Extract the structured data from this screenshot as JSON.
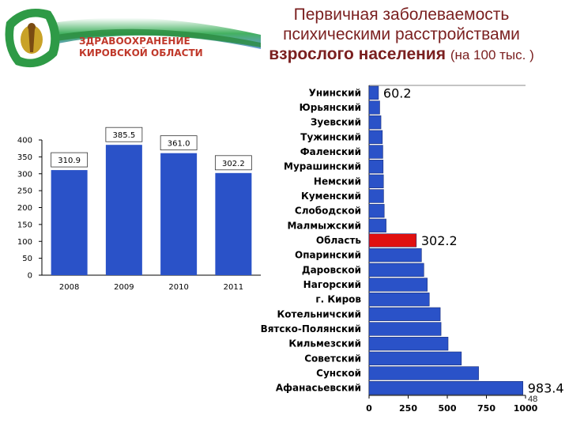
{
  "header": {
    "logo_line1": "ЗДРАВООХРАНЕНИЕ",
    "logo_line2": "КИРОВСКОЙ ОБЛАСТИ",
    "title_line1": "Первичная заболеваемость",
    "title_line2": "психическими расстройствами",
    "title_line3": "взрослого населения",
    "title_sub": "(на 100 тыс. )",
    "page_number": "48"
  },
  "colors": {
    "bar": "#2a52c8",
    "bar_highlight": "#e01010",
    "title": "#7a1f1f",
    "logo_text": "#c0392b"
  },
  "chart_data": [
    {
      "type": "bar",
      "categories": [
        "2008",
        "2009",
        "2010",
        "2011"
      ],
      "values": [
        310.9,
        385.5,
        361.0,
        302.2
      ],
      "value_labels": [
        "310.9",
        "385.5",
        "361.0",
        "302.2"
      ],
      "ylim": [
        0,
        400
      ],
      "yticks": [
        0,
        50,
        100,
        150,
        200,
        250,
        300,
        350,
        400
      ],
      "grid": false,
      "color": "#2a52c8"
    },
    {
      "type": "bar",
      "orientation": "horizontal",
      "categories": [
        "Унинский",
        "Юрьянский",
        "Зуевский",
        "Тужинский",
        "Фаленский",
        "Мурашинский",
        "Немский",
        "Куменский",
        "Слободской",
        "Малмыжский",
        "Область",
        "Опаринский",
        "Даровской",
        "Нагорский",
        "г. Киров",
        "Котельничский",
        "Вятско-Полянский",
        "Кильмезский",
        "Советский",
        "Сунской",
        "Афанасьевский"
      ],
      "values": [
        60.2,
        68,
        76,
        85,
        88,
        90,
        92,
        93,
        97,
        109,
        302.2,
        335,
        350,
        372,
        385,
        455,
        460,
        505,
        590,
        700,
        983.4
      ],
      "value_labels": {
        "0": "60.2",
        "10": "302.2",
        "20": "983.4"
      },
      "highlight_index": 10,
      "xlim": [
        0,
        1000
      ],
      "xticks": [
        0,
        250,
        500,
        750,
        1000
      ],
      "grid": false
    }
  ]
}
